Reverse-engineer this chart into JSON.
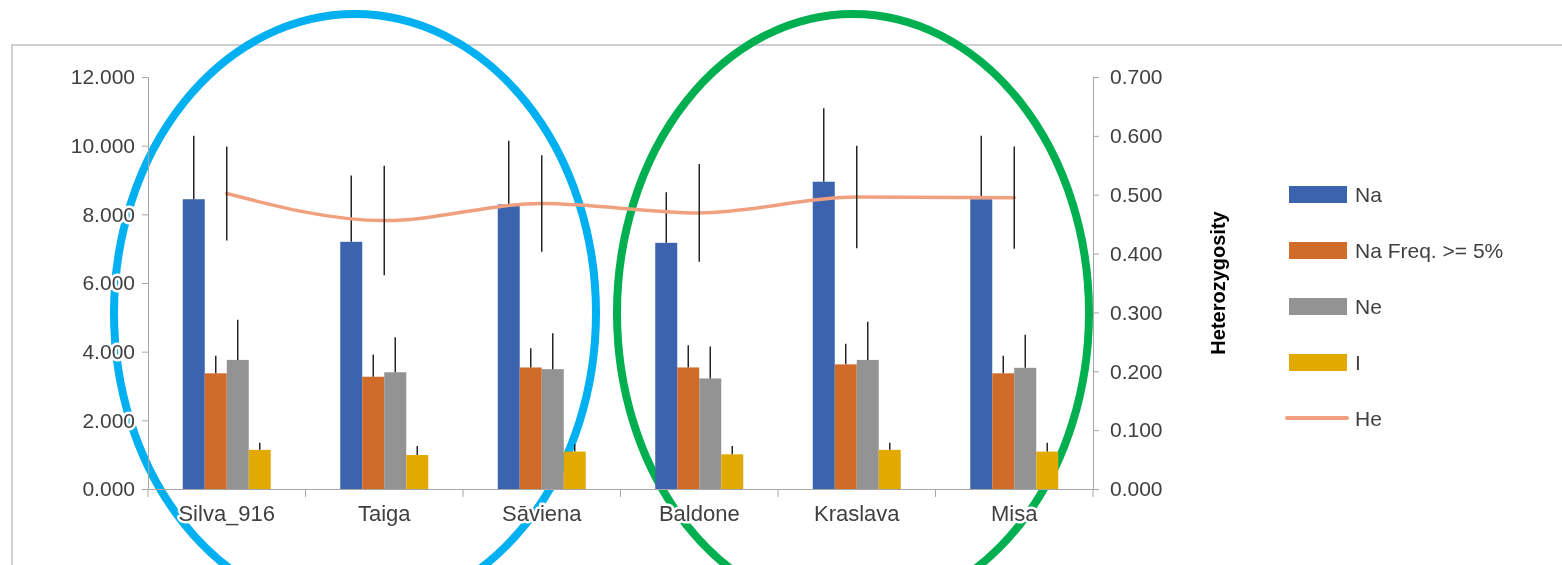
{
  "chart_data": {
    "type": "bar",
    "categories": [
      "Silva_916",
      "Taiga",
      "Sāviena",
      "Baldone",
      "Kraslava",
      "Misa"
    ],
    "series": [
      {
        "name": "Na",
        "color": "#3c64ae",
        "values": [
          8.44,
          7.2,
          8.29,
          7.17,
          8.95,
          8.44
        ],
        "errors": [
          [
            8.44,
            10.29
          ],
          [
            7.2,
            9.13
          ],
          [
            8.29,
            10.14
          ],
          [
            7.17,
            8.64
          ],
          [
            8.95,
            11.09
          ],
          [
            8.44,
            10.29
          ]
        ]
      },
      {
        "name": "Na Freq. >= 5%",
        "color": "#d06b29",
        "values": [
          3.37,
          3.27,
          3.54,
          3.54,
          3.63,
          3.37
        ],
        "errors": [
          [
            3.37,
            3.88
          ],
          [
            3.27,
            3.92
          ],
          [
            3.54,
            4.1
          ],
          [
            3.54,
            4.19
          ],
          [
            3.63,
            4.23
          ],
          [
            3.37,
            3.88
          ]
        ]
      },
      {
        "name": "Ne",
        "color": "#939393",
        "values": [
          3.76,
          3.4,
          3.49,
          3.22,
          3.76,
          3.53
        ],
        "errors": [
          [
            3.76,
            4.93
          ],
          [
            3.4,
            4.42
          ],
          [
            3.49,
            4.54
          ],
          [
            3.22,
            4.15
          ],
          [
            3.76,
            4.87
          ],
          [
            3.53,
            4.49
          ]
        ]
      },
      {
        "name": "I",
        "color": "#e2aa00",
        "values": [
          1.14,
          0.99,
          1.09,
          1.01,
          1.14,
          1.09
        ],
        "errors": [
          [
            1.14,
            1.35
          ],
          [
            0.99,
            1.25
          ],
          [
            1.09,
            1.3
          ],
          [
            1.01,
            1.25
          ],
          [
            1.14,
            1.35
          ],
          [
            1.09,
            1.35
          ]
        ]
      },
      {
        "name": "He",
        "type": "line",
        "axis": "y2",
        "color": "#f0a07f",
        "values": [
          0.502,
          0.456,
          0.485,
          0.469,
          0.496,
          0.495
        ],
        "errors": [
          0.08,
          0.093,
          0.082,
          0.083,
          0.087,
          0.087
        ]
      }
    ],
    "ylim": [
      0,
      12
    ],
    "yticks": [
      {
        "value": 0,
        "label": "0.000"
      },
      {
        "value": 2,
        "label": "2.000"
      },
      {
        "value": 4,
        "label": "4.000"
      },
      {
        "value": 6,
        "label": "6.000"
      },
      {
        "value": 8,
        "label": "8.000"
      },
      {
        "value": 10,
        "label": "10.000"
      },
      {
        "value": 12,
        "label": "12.000"
      }
    ],
    "y2lim": [
      0,
      0.7
    ],
    "y2ticks": [
      {
        "value": 0,
        "label": "0.000"
      },
      {
        "value": 0.1,
        "label": "0.100"
      },
      {
        "value": 0.2,
        "label": "0.200"
      },
      {
        "value": 0.3,
        "label": "0.300"
      },
      {
        "value": 0.4,
        "label": "0.400"
      },
      {
        "value": 0.5,
        "label": "0.500"
      },
      {
        "value": 0.6,
        "label": "0.600"
      },
      {
        "value": 0.7,
        "label": "0.700"
      }
    ],
    "y2label": "Heterozygosity",
    "legend": "right",
    "grid": false
  }
}
